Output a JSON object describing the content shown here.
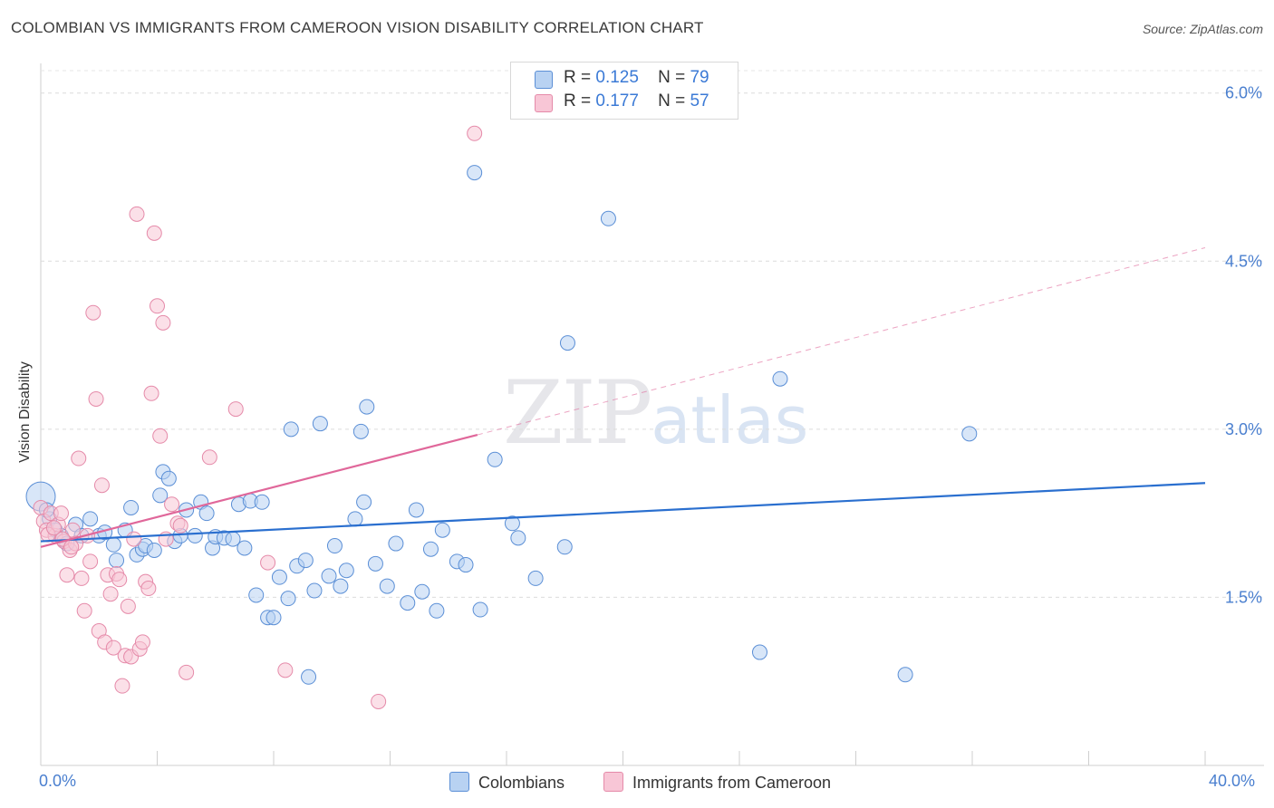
{
  "title": "COLOMBIAN VS IMMIGRANTS FROM CAMEROON VISION DISABILITY CORRELATION CHART",
  "source": "Source: ZipAtlas.com",
  "watermark": {
    "zip": "ZIP",
    "atlas": "atlas"
  },
  "legend": {
    "r_label": "R =",
    "n_label": "N =",
    "series": [
      {
        "name": "Colombians",
        "r": "0.125",
        "n": "79",
        "fill": "#b8d2f2",
        "stroke": "#5b8fd6",
        "line": "#2a6fcf"
      },
      {
        "name": "Immigrants from Cameroon",
        "r": "0.177",
        "n": "57",
        "fill": "#f8c6d6",
        "stroke": "#e58aa9",
        "line": "#e0679a"
      }
    ]
  },
  "chart_data": {
    "type": "scatter",
    "title": "COLOMBIAN VS IMMIGRANTS FROM CAMEROON VISION DISABILITY CORRELATION CHART",
    "xlabel": "",
    "ylabel": "Vision Disability",
    "xlim": [
      0,
      40
    ],
    "ylim": [
      0,
      6.2
    ],
    "x_tick_labels": [
      "0.0%",
      "40.0%"
    ],
    "y_ticks": [
      {
        "value": 1.5,
        "label": "1.5%"
      },
      {
        "value": 3.0,
        "label": "3.0%"
      },
      {
        "value": 4.5,
        "label": "4.5%"
      },
      {
        "value": 6.0,
        "label": "6.0%"
      }
    ],
    "series": [
      {
        "name": "Colombians",
        "trend": {
          "x": [
            0,
            40
          ],
          "y": [
            2.0,
            2.52
          ]
        },
        "points": [
          [
            0.0,
            2.4
          ],
          [
            0.3,
            2.2
          ],
          [
            0.5,
            2.1
          ],
          [
            0.7,
            2.05
          ],
          [
            0.9,
            1.98
          ],
          [
            1.2,
            2.15
          ],
          [
            1.4,
            2.05
          ],
          [
            1.7,
            2.2
          ],
          [
            2.0,
            2.05
          ],
          [
            2.2,
            2.08
          ],
          [
            2.5,
            1.97
          ],
          [
            2.6,
            1.83
          ],
          [
            2.9,
            2.1
          ],
          [
            3.1,
            2.3
          ],
          [
            3.3,
            1.88
          ],
          [
            3.5,
            1.93
          ],
          [
            3.6,
            1.96
          ],
          [
            3.9,
            1.92
          ],
          [
            4.1,
            2.41
          ],
          [
            4.2,
            2.62
          ],
          [
            4.4,
            2.56
          ],
          [
            4.6,
            2.0
          ],
          [
            4.8,
            2.05
          ],
          [
            5.0,
            2.28
          ],
          [
            5.3,
            2.05
          ],
          [
            5.5,
            2.35
          ],
          [
            5.7,
            2.25
          ],
          [
            5.9,
            1.94
          ],
          [
            6.0,
            2.04
          ],
          [
            6.3,
            2.03
          ],
          [
            6.6,
            2.02
          ],
          [
            6.8,
            2.33
          ],
          [
            7.0,
            1.94
          ],
          [
            7.2,
            2.36
          ],
          [
            7.4,
            1.52
          ],
          [
            7.6,
            2.35
          ],
          [
            7.8,
            1.32
          ],
          [
            8.0,
            1.32
          ],
          [
            8.2,
            1.68
          ],
          [
            8.5,
            1.49
          ],
          [
            8.6,
            3.0
          ],
          [
            8.8,
            1.78
          ],
          [
            9.1,
            1.83
          ],
          [
            9.2,
            0.79
          ],
          [
            9.4,
            1.56
          ],
          [
            9.6,
            3.05
          ],
          [
            9.9,
            1.69
          ],
          [
            10.1,
            1.96
          ],
          [
            10.3,
            1.6
          ],
          [
            10.5,
            1.74
          ],
          [
            10.8,
            2.2
          ],
          [
            11.0,
            2.98
          ],
          [
            11.1,
            2.35
          ],
          [
            11.2,
            3.2
          ],
          [
            11.5,
            1.8
          ],
          [
            11.9,
            1.6
          ],
          [
            12.2,
            1.98
          ],
          [
            12.6,
            1.45
          ],
          [
            12.9,
            2.28
          ],
          [
            13.1,
            1.55
          ],
          [
            13.4,
            1.93
          ],
          [
            13.6,
            1.38
          ],
          [
            13.8,
            2.1
          ],
          [
            14.3,
            1.82
          ],
          [
            14.6,
            1.79
          ],
          [
            14.9,
            5.29
          ],
          [
            15.1,
            1.39
          ],
          [
            15.6,
            2.73
          ],
          [
            16.2,
            2.16
          ],
          [
            16.4,
            2.03
          ],
          [
            17.0,
            1.67
          ],
          [
            18.0,
            1.95
          ],
          [
            18.1,
            3.77
          ],
          [
            19.5,
            4.88
          ],
          [
            24.7,
            1.01
          ],
          [
            25.4,
            3.45
          ],
          [
            29.7,
            0.81
          ],
          [
            31.9,
            2.96
          ],
          [
            0.2,
            2.28
          ]
        ]
      },
      {
        "name": "Immigrants from Cameroon",
        "trend": {
          "x": [
            0,
            15.0
          ],
          "y": [
            1.95,
            2.95
          ]
        },
        "trend_ext": {
          "x": [
            15.0,
            40
          ],
          "y": [
            2.95,
            4.62
          ]
        },
        "points": [
          [
            0.0,
            2.3
          ],
          [
            0.1,
            2.18
          ],
          [
            0.2,
            2.1
          ],
          [
            0.35,
            2.25
          ],
          [
            0.5,
            2.05
          ],
          [
            0.6,
            2.15
          ],
          [
            0.7,
            2.25
          ],
          [
            0.8,
            2.0
          ],
          [
            0.9,
            1.7
          ],
          [
            1.0,
            1.92
          ],
          [
            1.1,
            2.1
          ],
          [
            1.2,
            1.98
          ],
          [
            1.3,
            2.74
          ],
          [
            1.4,
            1.67
          ],
          [
            1.5,
            1.38
          ],
          [
            1.6,
            2.05
          ],
          [
            1.7,
            1.82
          ],
          [
            1.8,
            4.04
          ],
          [
            1.9,
            3.27
          ],
          [
            2.0,
            1.2
          ],
          [
            2.1,
            2.5
          ],
          [
            2.2,
            1.1
          ],
          [
            2.3,
            1.7
          ],
          [
            2.4,
            1.53
          ],
          [
            2.5,
            1.05
          ],
          [
            2.6,
            1.71
          ],
          [
            2.7,
            1.66
          ],
          [
            2.8,
            0.71
          ],
          [
            2.9,
            0.98
          ],
          [
            3.0,
            1.42
          ],
          [
            3.1,
            0.97
          ],
          [
            3.2,
            2.02
          ],
          [
            3.3,
            4.92
          ],
          [
            3.4,
            1.04
          ],
          [
            3.5,
            1.1
          ],
          [
            3.6,
            1.64
          ],
          [
            3.7,
            1.58
          ],
          [
            3.8,
            3.32
          ],
          [
            3.9,
            4.75
          ],
          [
            4.0,
            4.1
          ],
          [
            4.1,
            2.94
          ],
          [
            4.2,
            3.95
          ],
          [
            4.3,
            2.02
          ],
          [
            4.5,
            2.33
          ],
          [
            4.7,
            2.16
          ],
          [
            4.8,
            2.14
          ],
          [
            5.0,
            0.83
          ],
          [
            5.8,
            2.75
          ],
          [
            6.7,
            3.18
          ],
          [
            7.8,
            1.81
          ],
          [
            8.4,
            0.85
          ],
          [
            11.6,
            0.57
          ],
          [
            14.9,
            5.64
          ],
          [
            0.25,
            2.06
          ],
          [
            0.45,
            2.12
          ],
          [
            0.75,
            2.02
          ],
          [
            1.05,
            1.95
          ]
        ]
      }
    ]
  }
}
